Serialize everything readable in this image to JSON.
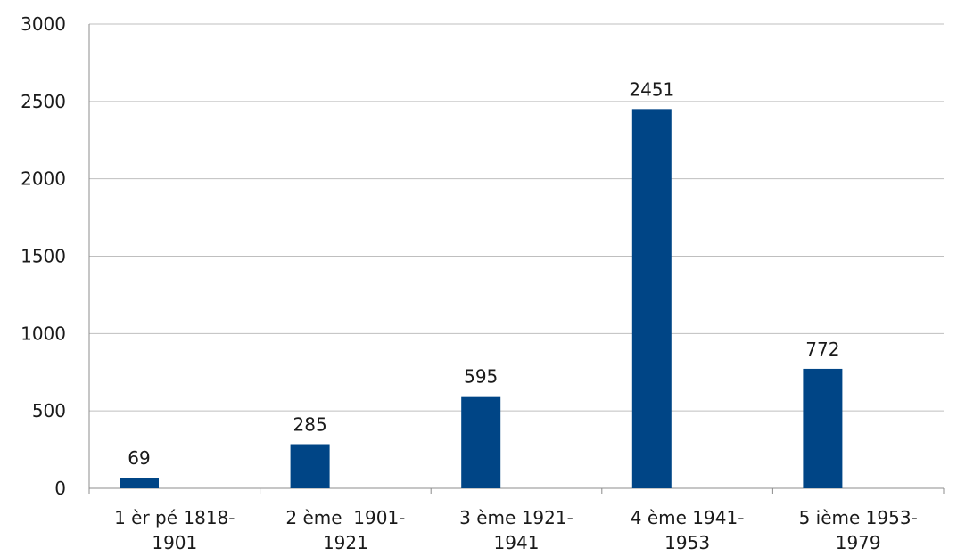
{
  "chart_data": {
    "type": "bar",
    "categories": [
      [
        "1 èr pé 1818-",
        "1901"
      ],
      [
        "2 ème  1901-",
        "1921"
      ],
      [
        "3 ème 1921-",
        "1941"
      ],
      [
        "4 ème 1941-",
        "1953"
      ],
      [
        "5 ième 1953-",
        "1979"
      ]
    ],
    "values": [
      69,
      285,
      595,
      2451,
      772
    ],
    "data_labels": [
      "69",
      "285",
      "595",
      "2451",
      "772"
    ],
    "ylim": [
      0,
      3000
    ],
    "yticks": [
      0,
      500,
      1000,
      1500,
      2000,
      2500,
      3000
    ],
    "grid": true,
    "legend": "none",
    "bar_color": "#004586"
  }
}
